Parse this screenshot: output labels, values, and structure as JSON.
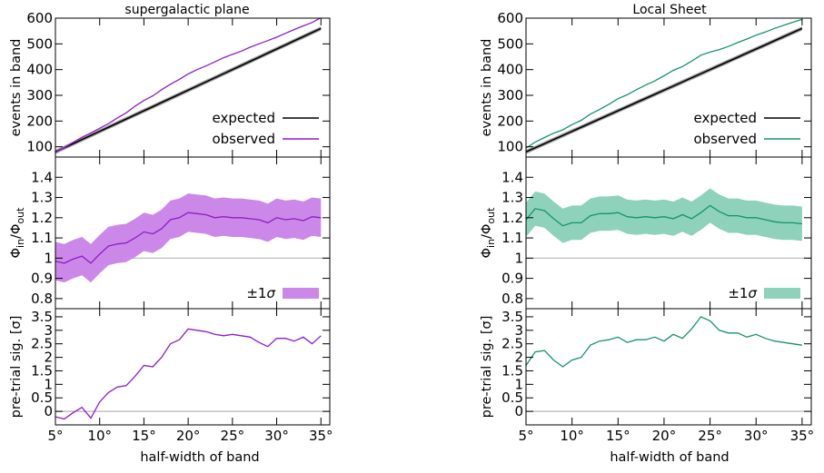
{
  "colors": {
    "expected": "#000000",
    "expected_band": "#9e9e9e",
    "left_series": "#8e1cc9",
    "left_band": "#cc88e8",
    "right_series": "#14946a",
    "right_band": "#8fd2bb",
    "reference_line": "#b5b5b5"
  },
  "xlabel": "half-width of band",
  "chart_data": [
    {
      "type": "line",
      "title": "supergalactic plane",
      "ylabel": "events in band",
      "xlim": [
        5,
        36
      ],
      "ylim": [
        60,
        600
      ],
      "xticks": [
        "5°",
        "10°",
        "15°",
        "20°",
        "25°",
        "30°",
        "35°"
      ],
      "yticks": [
        "100",
        "200",
        "300",
        "400",
        "500",
        "600"
      ],
      "legend": {
        "position": "lower-right",
        "entries": [
          "expected",
          "observed"
        ]
      },
      "x": [
        5,
        6,
        7,
        8,
        9,
        10,
        11,
        12,
        13,
        14,
        15,
        16,
        17,
        18,
        19,
        20,
        21,
        22,
        23,
        24,
        25,
        26,
        27,
        28,
        29,
        30,
        31,
        32,
        33,
        34,
        35
      ],
      "series": [
        {
          "name": "expected",
          "values": [
            80,
            96,
            112,
            128,
            144,
            160,
            176,
            192,
            208,
            224,
            240,
            256,
            272,
            288,
            304,
            320,
            336,
            352,
            368,
            384,
            400,
            416,
            432,
            448,
            464,
            480,
            496,
            512,
            528,
            544,
            560
          ],
          "band_halfwidth": 8
        },
        {
          "name": "observed",
          "values": [
            78,
            97,
            117,
            137,
            154,
            172,
            190,
            212,
            232,
            258,
            280,
            298,
            322,
            343,
            362,
            383,
            400,
            414,
            430,
            446,
            459,
            472,
            487,
            500,
            513,
            526,
            541,
            556,
            570,
            583,
            602
          ]
        }
      ]
    },
    {
      "type": "line",
      "title": "",
      "ylabel": "Φin/Φout",
      "xlim": [
        5,
        36
      ],
      "ylim": [
        0.75,
        1.5
      ],
      "xticks": [
        "5°",
        "10°",
        "15°",
        "20°",
        "25°",
        "30°",
        "35°"
      ],
      "yticks": [
        "0.8",
        "0.9",
        "1",
        "1.1",
        "1.2",
        "1.3",
        "1.4"
      ],
      "reference_line": 1,
      "legend": {
        "position": "lower-right",
        "entries": [
          "±1σ"
        ]
      },
      "x": [
        5,
        6,
        7,
        8,
        9,
        10,
        11,
        12,
        13,
        14,
        15,
        16,
        17,
        18,
        19,
        20,
        21,
        22,
        23,
        24,
        25,
        26,
        27,
        28,
        29,
        30,
        31,
        32,
        33,
        34,
        35
      ],
      "series": [
        {
          "name": "observed",
          "values": [
            0.985,
            0.975,
            0.995,
            1.01,
            0.975,
            1.02,
            1.06,
            1.07,
            1.075,
            1.1,
            1.13,
            1.12,
            1.145,
            1.19,
            1.2,
            1.225,
            1.22,
            1.215,
            1.2,
            1.205,
            1.2,
            1.2,
            1.195,
            1.19,
            1.175,
            1.2,
            1.19,
            1.195,
            1.185,
            1.205,
            1.2
          ],
          "band_halfwidth": 0.095
        }
      ]
    },
    {
      "type": "line",
      "title": "",
      "ylabel": "pre-trial sig. [σ]",
      "xlim": [
        5,
        36
      ],
      "ylim": [
        -0.5,
        3.8
      ],
      "xticks": [
        "5°",
        "10°",
        "15°",
        "20°",
        "25°",
        "30°",
        "35°"
      ],
      "yticks": [
        "0",
        "0.5",
        "1",
        "1.5",
        "2",
        "2.5",
        "3",
        "3.5"
      ],
      "reference_line": 0,
      "x": [
        5,
        6,
        7,
        8,
        9,
        10,
        11,
        12,
        13,
        14,
        15,
        16,
        17,
        18,
        19,
        20,
        21,
        22,
        23,
        24,
        25,
        26,
        27,
        28,
        29,
        30,
        31,
        32,
        33,
        34,
        35
      ],
      "series": [
        {
          "name": "observed",
          "values": [
            -0.2,
            -0.28,
            -0.05,
            0.15,
            -0.25,
            0.35,
            0.7,
            0.9,
            0.95,
            1.3,
            1.7,
            1.65,
            2.0,
            2.5,
            2.65,
            3.05,
            3.0,
            2.95,
            2.85,
            2.8,
            2.85,
            2.8,
            2.75,
            2.55,
            2.4,
            2.7,
            2.7,
            2.6,
            2.75,
            2.5,
            2.8
          ]
        }
      ]
    },
    {
      "type": "line",
      "title": "Local Sheet",
      "ylabel": "events in band",
      "xlim": [
        5,
        36
      ],
      "ylim": [
        60,
        600
      ],
      "xticks": [
        "5°",
        "10°",
        "15°",
        "20°",
        "25°",
        "30°",
        "35°"
      ],
      "yticks": [
        "100",
        "200",
        "300",
        "400",
        "500",
        "600"
      ],
      "legend": {
        "position": "lower-right",
        "entries": [
          "expected",
          "observed"
        ]
      },
      "x": [
        5,
        6,
        7,
        8,
        9,
        10,
        11,
        12,
        13,
        14,
        15,
        16,
        17,
        18,
        19,
        20,
        21,
        22,
        23,
        24,
        25,
        26,
        27,
        28,
        29,
        30,
        31,
        32,
        33,
        34,
        35
      ],
      "series": [
        {
          "name": "expected",
          "values": [
            80,
            96,
            112,
            128,
            144,
            160,
            176,
            192,
            208,
            224,
            240,
            256,
            272,
            288,
            304,
            320,
            336,
            352,
            368,
            384,
            400,
            416,
            432,
            448,
            464,
            480,
            496,
            512,
            528,
            544,
            560
          ],
          "band_halfwidth": 8
        },
        {
          "name": "observed",
          "values": [
            95,
            118,
            136,
            153,
            166,
            186,
            203,
            227,
            245,
            265,
            287,
            302,
            322,
            340,
            356,
            376,
            397,
            412,
            433,
            456,
            468,
            478,
            490,
            505,
            519,
            534,
            546,
            560,
            572,
            584,
            595
          ]
        }
      ]
    },
    {
      "type": "line",
      "title": "",
      "ylabel": "Φin/Φout",
      "xlim": [
        5,
        36
      ],
      "ylim": [
        0.75,
        1.5
      ],
      "xticks": [
        "5°",
        "10°",
        "15°",
        "20°",
        "25°",
        "30°",
        "35°"
      ],
      "yticks": [
        "0.8",
        "0.9",
        "1",
        "1.1",
        "1.2",
        "1.3",
        "1.4"
      ],
      "reference_line": 1,
      "legend": {
        "position": "lower-right",
        "entries": [
          "±1σ"
        ]
      },
      "x": [
        5,
        6,
        7,
        8,
        9,
        10,
        11,
        12,
        13,
        14,
        15,
        16,
        17,
        18,
        19,
        20,
        21,
        22,
        23,
        24,
        25,
        26,
        27,
        28,
        29,
        30,
        31,
        32,
        33,
        34,
        35
      ],
      "series": [
        {
          "name": "observed",
          "values": [
            1.19,
            1.245,
            1.235,
            1.195,
            1.16,
            1.175,
            1.175,
            1.21,
            1.22,
            1.22,
            1.225,
            1.205,
            1.2,
            1.205,
            1.2,
            1.205,
            1.195,
            1.215,
            1.195,
            1.225,
            1.26,
            1.23,
            1.21,
            1.21,
            1.2,
            1.2,
            1.19,
            1.18,
            1.175,
            1.175,
            1.17
          ],
          "band_halfwidth": 0.085
        }
      ]
    },
    {
      "type": "line",
      "title": "",
      "ylabel": "pre-trial sig. [σ]",
      "xlim": [
        5,
        36
      ],
      "ylim": [
        -0.5,
        3.8
      ],
      "xticks": [
        "5°",
        "10°",
        "15°",
        "20°",
        "25°",
        "30°",
        "35°"
      ],
      "yticks": [
        "0",
        "0.5",
        "1",
        "1.5",
        "2",
        "2.5",
        "3",
        "3.5"
      ],
      "reference_line": 0,
      "x": [
        5,
        6,
        7,
        8,
        9,
        10,
        11,
        12,
        13,
        14,
        15,
        16,
        17,
        18,
        19,
        20,
        21,
        22,
        23,
        24,
        25,
        26,
        27,
        28,
        29,
        30,
        31,
        32,
        33,
        34,
        35
      ],
      "series": [
        {
          "name": "observed",
          "values": [
            1.7,
            2.2,
            2.25,
            1.9,
            1.65,
            1.9,
            2.0,
            2.45,
            2.6,
            2.65,
            2.75,
            2.55,
            2.65,
            2.65,
            2.75,
            2.6,
            2.85,
            2.7,
            3.05,
            3.5,
            3.35,
            3.0,
            2.9,
            2.9,
            2.75,
            2.85,
            2.7,
            2.6,
            2.55,
            2.5,
            2.45
          ]
        }
      ]
    }
  ]
}
